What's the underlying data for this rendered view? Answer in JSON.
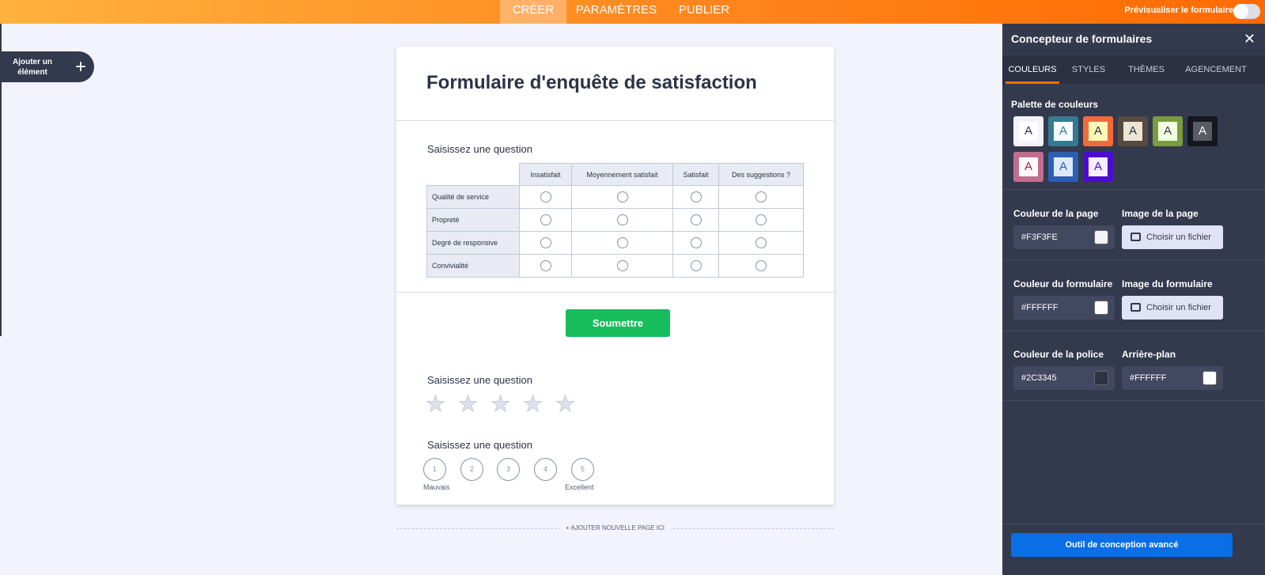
{
  "topbar": {
    "tabs": [
      "CRÉER",
      "PARAMÈTRES",
      "PUBLIER"
    ],
    "active": "CRÉER",
    "preview_label": "Prévisualiser le formulaire",
    "preview_on": false
  },
  "add_element": {
    "label": "Ajouter un élément",
    "icon": "plus-icon"
  },
  "form": {
    "title": "Formulaire d'enquête de satisfaction",
    "matrix": {
      "question": "Saisissez une question",
      "columns": [
        "Insatisfait",
        "Moyennement satisfait",
        "Satisfait",
        "Des suggestions ?"
      ],
      "rows": [
        "Qualité de service",
        "Propreté",
        "Degré de responsive",
        "Convivialité"
      ]
    },
    "submit_label": "Soumettre",
    "rating": {
      "question": "Saisissez une question",
      "stars": 5
    },
    "scale": {
      "question": "Saisissez une question",
      "values": [
        "1",
        "2",
        "3",
        "4",
        "5"
      ],
      "min_label": "Mauvais",
      "max_label": "Excellent"
    },
    "add_page_label": "+ AJOUTER NOUVELLE PAGE ICI"
  },
  "panel": {
    "title": "Concepteur de formulaires",
    "tabs": [
      "COULEURS",
      "STYLES",
      "THÈMES",
      "AGENCEMENT"
    ],
    "active_tab": "COULEURS",
    "palette_label": "Palette de couleurs",
    "palette": [
      {
        "outer": "#F3F3FE",
        "inner": "#FFFFFF",
        "text": "#2C3345"
      },
      {
        "outer": "#367A92",
        "inner": "#F5FBFF",
        "text": "#367A92"
      },
      {
        "outer": "#F26B3A",
        "inner": "#FFF8B8",
        "text": "#2C3345"
      },
      {
        "outer": "#574A41",
        "inner": "#EDE6D5",
        "text": "#2C3345"
      },
      {
        "outer": "#7A9C3E",
        "inner": "#F3FFE2",
        "text": "#2C3345"
      },
      {
        "outer": "#16171E",
        "inner": "#595B64",
        "text": "#FFFFFF"
      },
      {
        "outer": "#C06E8E",
        "inner": "#FFF8FB",
        "text": "#8C2A4C"
      },
      {
        "outer": "#2D5FB3",
        "inner": "#DDE9FF",
        "text": "#2D5FB3"
      },
      {
        "outer": "#4B0CD1",
        "inner": "#F5F0FF",
        "text": "#4B0CD1"
      }
    ],
    "page_color_label": "Couleur de la page",
    "page_color": "#F3F3FE",
    "page_image_label": "Image de la page",
    "form_color_label": "Couleur du formulaire",
    "form_color": "#FFFFFF",
    "form_image_label": "Image du formulaire",
    "font_color_label": "Couleur de la police",
    "font_color": "#2C3345",
    "background_label": "Arrière-plan",
    "background_color": "#FFFFFF",
    "choose_file_label": "Choisir un fichier",
    "advanced_label": "Outil de conception avancé"
  }
}
